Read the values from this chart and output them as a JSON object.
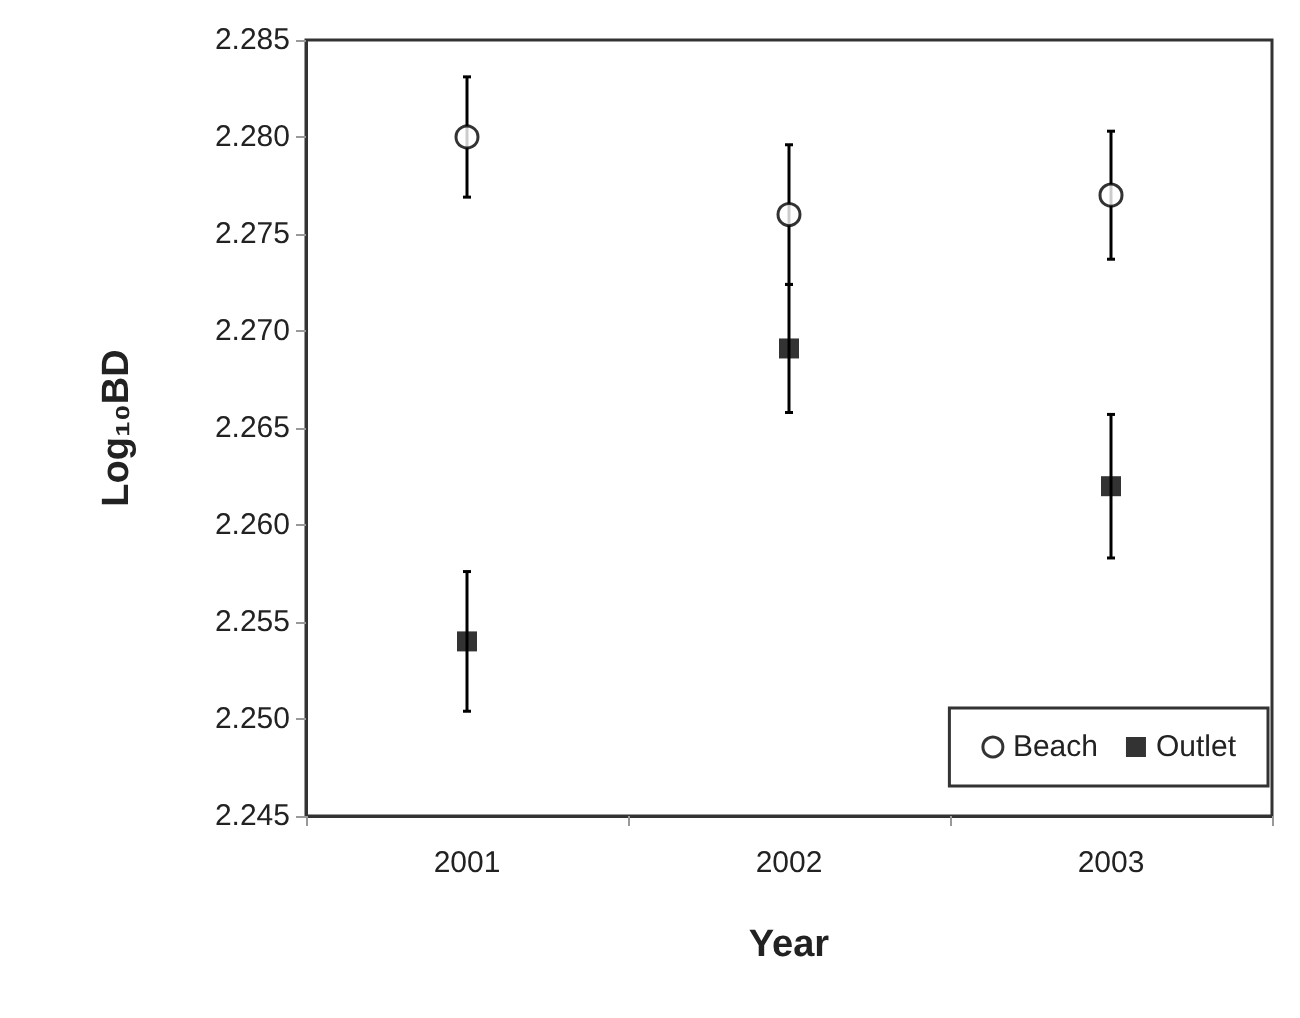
{
  "chart_data": {
    "type": "scatter",
    "xlabel": "Year",
    "ylabel": "Log₁₀BD",
    "categories": [
      "2001",
      "2002",
      "2003"
    ],
    "series": [
      {
        "name": "Beach",
        "color": "#000000",
        "marker": "circle",
        "values": [
          2.28,
          2.276,
          2.277
        ],
        "errors": [
          0.0031,
          0.0036,
          0.0033
        ]
      },
      {
        "name": "Outlet",
        "color": "#000000",
        "marker": "square",
        "values": [
          2.254,
          2.2691,
          2.262
        ],
        "errors": [
          0.0036,
          0.0033,
          0.0037
        ]
      }
    ],
    "ylim": [
      2.245,
      2.285
    ],
    "yticks": [
      2.245,
      {
        "value": 2.25,
        "label": "2.250"
      },
      2.255,
      {
        "value": 2.26,
        "label": "2.260"
      },
      2.265,
      {
        "value": 2.27,
        "label": "2.270"
      },
      2.275,
      {
        "value": 2.28,
        "label": "2.280"
      },
      2.285
    ],
    "grid": false,
    "legend": "bottom right"
  }
}
